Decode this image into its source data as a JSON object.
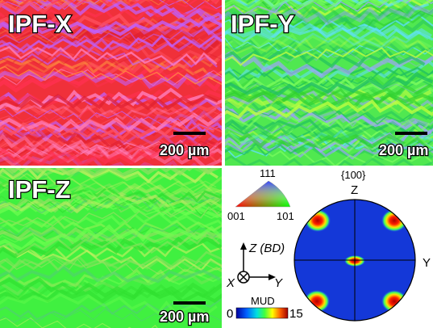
{
  "panels": [
    {
      "label": "IPF-X",
      "scale_bar": "200 µm"
    },
    {
      "label": "IPF-Y",
      "scale_bar": "200 µm"
    },
    {
      "label": "IPF-Z",
      "scale_bar": "200 µm"
    }
  ],
  "legend": {
    "triangle": {
      "top": "111",
      "left": "001",
      "right": "101"
    },
    "axes": {
      "z": "Z (BD)",
      "x": "X",
      "y": "Y"
    },
    "colorbar": {
      "title": "MUD",
      "min": "0",
      "max": "15"
    }
  },
  "pole_figure": {
    "title": "{100}",
    "top": "Z",
    "right": "Y"
  }
}
